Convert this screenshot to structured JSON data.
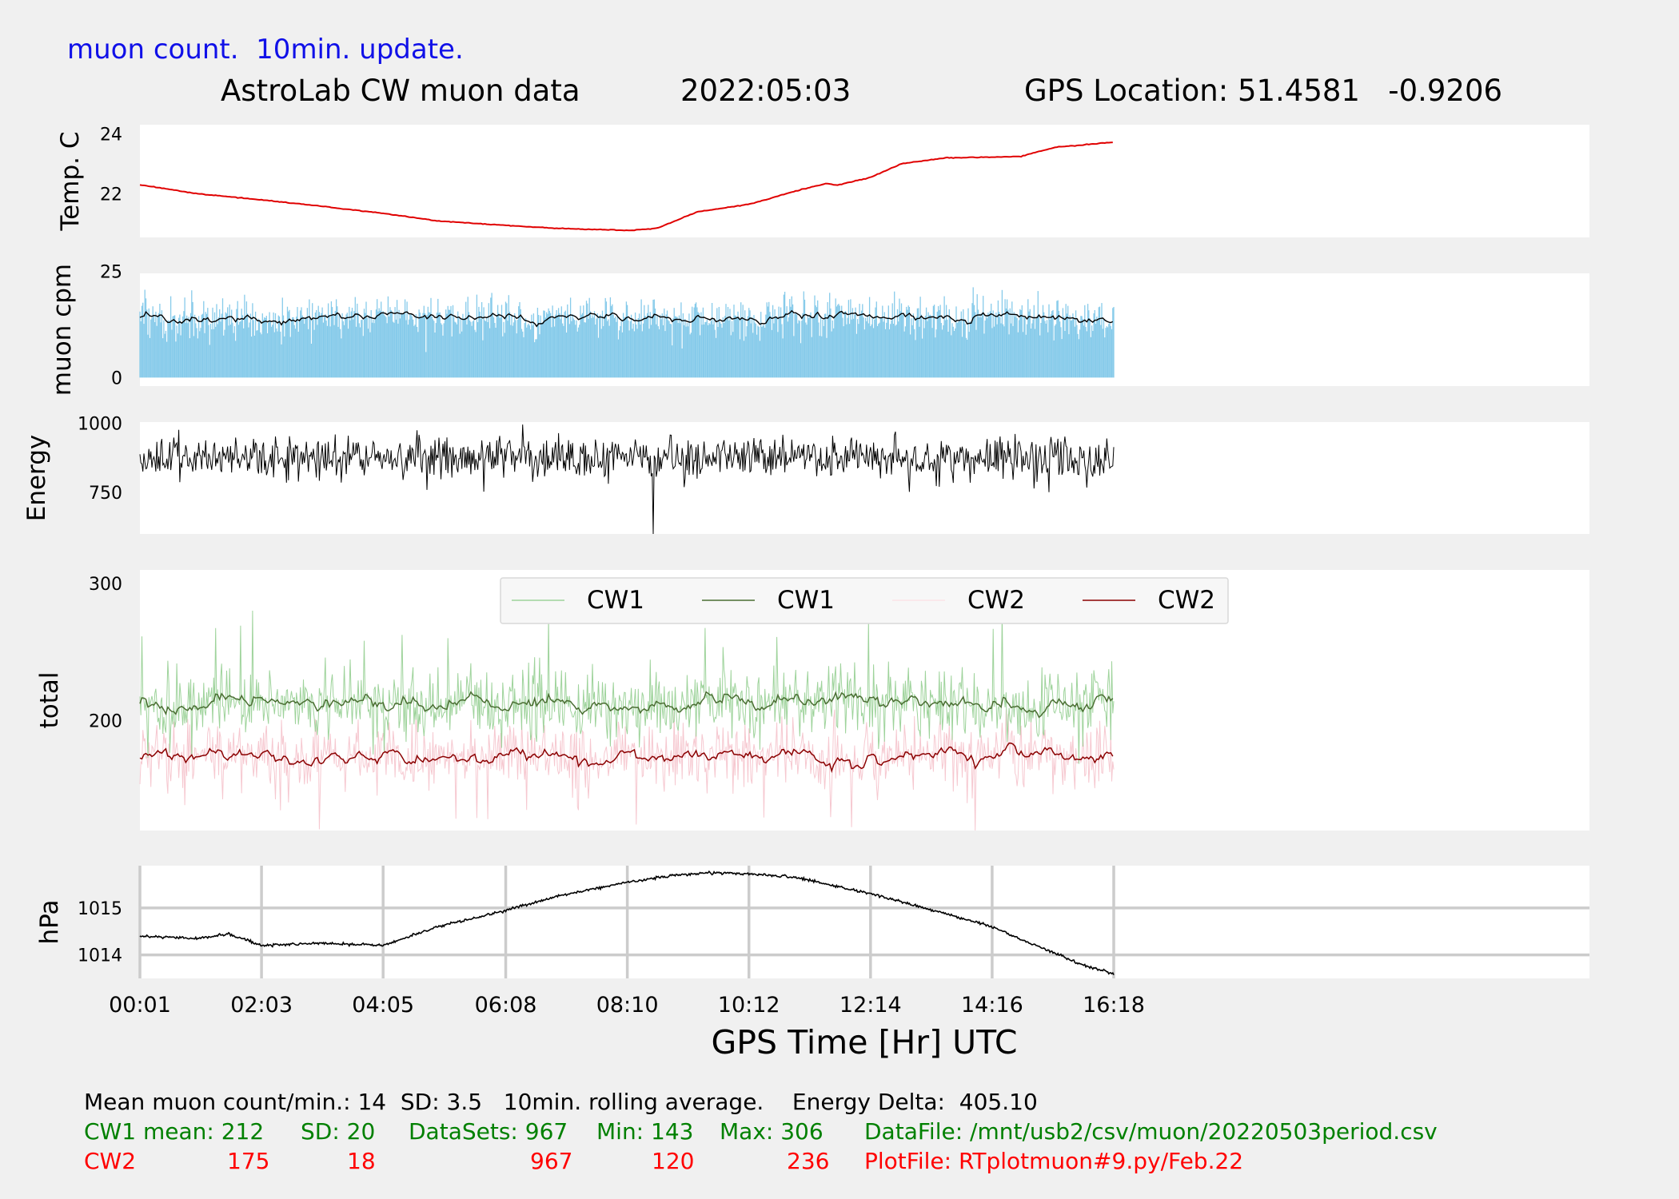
{
  "header": {
    "update_note": "muon count.  10min. update.",
    "title": "AstroLab CW muon data",
    "date": "2022:05:03",
    "gps_location": "GPS Location: 51.4581   -0.9206"
  },
  "colors": {
    "note_blue": "#1010e8",
    "temp_line": "#e00000",
    "muon_bars": "#87cbea",
    "cw1_raw": "#9ed39b",
    "cw1_avg": "#4a6e32",
    "cw2_raw": "#f6c8d0",
    "cw2_avg": "#8b0000",
    "footer_green": "#008000",
    "footer_red": "#ff0000"
  },
  "chart_data": [
    {
      "type": "line",
      "ylabel": "Temp. C",
      "yticks": [
        22,
        24
      ],
      "ylim": [
        20.55,
        24.3
      ],
      "series": [
        {
          "values": [
            [
              "00:01",
              22.3
            ],
            [
              "01:00",
              22.0
            ],
            [
              "02:03",
              21.8
            ],
            [
              "03:00",
              21.6
            ],
            [
              "04:05",
              21.35
            ],
            [
              "05:00",
              21.1
            ],
            [
              "06:08",
              20.95
            ],
            [
              "07:00",
              20.85
            ],
            [
              "08:10",
              20.78
            ],
            [
              "08:40",
              20.85
            ],
            [
              "09:20",
              21.4
            ],
            [
              "10:12",
              21.65
            ],
            [
              "11:00",
              22.1
            ],
            [
              "11:30",
              22.35
            ],
            [
              "11:40",
              22.28
            ],
            [
              "12:14",
              22.55
            ],
            [
              "12:45",
              23.0
            ],
            [
              "13:30",
              23.2
            ],
            [
              "14:16",
              23.22
            ],
            [
              "14:45",
              23.25
            ],
            [
              "15:20",
              23.55
            ],
            [
              "16:18",
              23.72
            ]
          ]
        }
      ]
    },
    {
      "type": "bar",
      "ylabel": "muon cpm",
      "yticks": [
        0,
        25
      ],
      "ylim": [
        -2,
        24.5
      ],
      "x_range": [
        "00:01",
        "16:18"
      ],
      "per_minute_range": [
        6,
        24
      ],
      "rolling_average_range": [
        11,
        17
      ]
    },
    {
      "type": "line",
      "ylabel": "Energy",
      "yticks": [
        750,
        1000
      ],
      "ylim": [
        600,
        1005
      ],
      "value_range": [
        690,
        1000
      ],
      "min_spike": {
        "x": "08:36",
        "value": 600
      }
    },
    {
      "type": "line",
      "ylabel": "total",
      "yticks": [
        200,
        300
      ],
      "ylim": [
        120,
        310
      ],
      "legend": [
        "CW1",
        "CW1",
        "CW2",
        "CW2"
      ],
      "legend_position": "upper center",
      "series": [
        {
          "name": "CW1",
          "mean": 212,
          "sd": 20,
          "min": 143,
          "max": 306
        },
        {
          "name": "CW1",
          "rolling_average_level": 212
        },
        {
          "name": "CW2",
          "mean": 175,
          "sd": 18,
          "min": 120,
          "max": 236
        },
        {
          "name": "CW2",
          "rolling_average_level": 175
        }
      ]
    },
    {
      "type": "line",
      "ylabel": "hPa",
      "yticks": [
        1014,
        1015
      ],
      "ylim": [
        1013.5,
        1015.9
      ],
      "grid": true,
      "series": [
        {
          "values": [
            [
              "00:01",
              1014.4
            ],
            [
              "01:00",
              1014.35
            ],
            [
              "01:30",
              1014.45
            ],
            [
              "02:03",
              1014.2
            ],
            [
              "03:00",
              1014.25
            ],
            [
              "04:05",
              1014.2
            ],
            [
              "05:00",
              1014.6
            ],
            [
              "06:08",
              1014.95
            ],
            [
              "07:00",
              1015.25
            ],
            [
              "08:10",
              1015.55
            ],
            [
              "09:00",
              1015.7
            ],
            [
              "09:30",
              1015.75
            ],
            [
              "10:12",
              1015.72
            ],
            [
              "11:00",
              1015.65
            ],
            [
              "12:14",
              1015.3
            ],
            [
              "13:00",
              1015.05
            ],
            [
              "14:16",
              1014.6
            ],
            [
              "15:00",
              1014.2
            ],
            [
              "15:45",
              1013.8
            ],
            [
              "16:18",
              1013.6
            ]
          ]
        }
      ]
    }
  ],
  "x_axis": {
    "ticks": [
      "00:01",
      "02:03",
      "04:05",
      "06:08",
      "08:10",
      "10:12",
      "12:14",
      "14:16",
      "16:18"
    ],
    "label": "GPS Time  [Hr] UTC"
  },
  "footer": {
    "summary": "Mean muon count/min.: 14  SD: 3.5   10min. rolling average.    Energy Delta:  405.10",
    "cw1_label": "CW1 mean: 212",
    "cw1_sd": "SD: 20",
    "cw1_datasets": "DataSets: 967",
    "cw1_min": "Min: 143",
    "cw1_max": "Max: 306",
    "datafile": "DataFile: /mnt/usb2/csv/muon/20220503period.csv",
    "cw2_label": "CW2",
    "cw2_mean": "175",
    "cw2_sd": "18",
    "cw2_datasets": "967",
    "cw2_min": "120",
    "cw2_max": "236",
    "plotfile": "PlotFile: RTplotmuon#9.py/Feb.22"
  }
}
